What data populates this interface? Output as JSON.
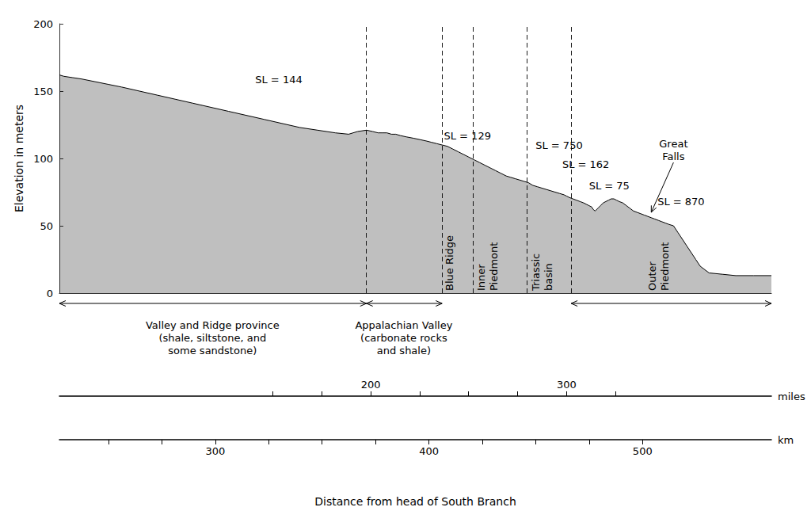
{
  "chart_data": {
    "type": "area",
    "xlabel": "Distance from head of South Branch",
    "ylabel": "Elevation in meters",
    "x": [
      0,
      5,
      15,
      25,
      40,
      55,
      70,
      90,
      110,
      130,
      150,
      170,
      190,
      210,
      230,
      250,
      270,
      290,
      310,
      325,
      335,
      345,
      352,
      358,
      363,
      368,
      373,
      378,
      383,
      390,
      398,
      405,
      412,
      418,
      424,
      430,
      436,
      442,
      448,
      454,
      460,
      466,
      472,
      478,
      484,
      490,
      496,
      502,
      507,
      512,
      517,
      522,
      527,
      532,
      537,
      542,
      547,
      552,
      557,
      562,
      567,
      570,
      573,
      577,
      581,
      585,
      589,
      592,
      595,
      598,
      600,
      602,
      605,
      608,
      611,
      614,
      617,
      620,
      623,
      626,
      629,
      633,
      637,
      641,
      645,
      649,
      653,
      657,
      661,
      665,
      669,
      673,
      677,
      681,
      685,
      690,
      695,
      700,
      705,
      710,
      715,
      720,
      730,
      745,
      760,
      780,
      800
    ],
    "values": [
      162,
      161,
      160,
      159,
      157,
      155,
      153,
      150,
      147,
      144,
      141,
      138,
      135,
      132,
      129,
      126,
      123,
      121,
      119,
      118,
      120,
      121,
      120,
      119,
      119,
      119,
      118,
      118,
      117,
      116,
      115,
      114,
      113,
      112,
      111,
      110,
      109,
      107,
      105,
      103,
      101,
      99,
      97,
      95,
      93,
      91,
      89,
      87,
      86,
      85,
      84,
      83,
      82,
      80,
      79,
      78,
      77,
      76,
      75,
      74,
      73,
      72,
      71,
      70,
      69,
      68,
      67,
      66,
      65,
      64,
      62,
      61,
      63,
      65,
      67,
      68,
      69,
      70,
      70,
      69,
      68,
      67,
      65,
      63,
      61,
      60,
      59,
      58,
      57,
      56,
      55,
      54,
      53,
      52,
      51,
      50,
      45,
      40,
      35,
      30,
      25,
      20,
      15,
      14,
      13,
      13,
      13
    ],
    "color": "#000000",
    "xlim": [
      0,
      800
    ],
    "ylim": [
      0,
      200
    ],
    "yticks": [
      0,
      50,
      100,
      150,
      200
    ],
    "tick_labels": "y",
    "grid": false,
    "dashed_lines_x": [
      345,
      430,
      465,
      525,
      575
    ],
    "annotations": [
      {
        "text": "SL = 144",
        "x": 220,
        "y": 154
      },
      {
        "text": "SL = 129",
        "x": 432,
        "y": 112
      },
      {
        "text": "SL = 750",
        "x": 535,
        "y": 105
      },
      {
        "text": "SL = 162",
        "x": 565,
        "y": 91
      },
      {
        "text": "SL = 75",
        "x": 595,
        "y": 75
      },
      {
        "text": "Great\nFalls",
        "x": 690,
        "y": 97,
        "arrow_to": [
          665,
          60
        ]
      },
      {
        "text": "SL = 870",
        "x": 672,
        "y": 63
      }
    ],
    "region_spans": [
      [
        0,
        345
      ],
      [
        345,
        430
      ],
      [
        575,
        800
      ]
    ],
    "region_labels": [
      {
        "text": "Valley and Ridge province\n(shale, siltstone, and\nsome sandstone)",
        "x": 172
      },
      {
        "text": "Appalachian Valley\n(carbonate rocks\nand shale)",
        "x": 387
      },
      {
        "text": "Blue Ridge",
        "x": 430,
        "vertical": true
      },
      {
        "text": "Inner\nPiedmont",
        "x": 466,
        "vertical": true
      },
      {
        "text": "Triassic\nbasin",
        "x": 527,
        "vertical": true
      },
      {
        "text": "Outer\nPiedmont",
        "x": 658,
        "vertical": true
      }
    ],
    "scales": [
      {
        "label": "miles",
        "start": 41.0,
        "factor": 2.2,
        "ticks": [
          200,
          300
        ],
        "minor_ticks": [
          150,
          175,
          200,
          225,
          250,
          275,
          300,
          325
        ],
        "side": "top"
      },
      {
        "label": "km",
        "start": 227.0,
        "factor": 2.4,
        "ticks": [
          300,
          400,
          500
        ],
        "minor_ticks": [
          250,
          275,
          300,
          325,
          350,
          375,
          400,
          425,
          450,
          475,
          500
        ],
        "side": "bottom"
      }
    ]
  }
}
